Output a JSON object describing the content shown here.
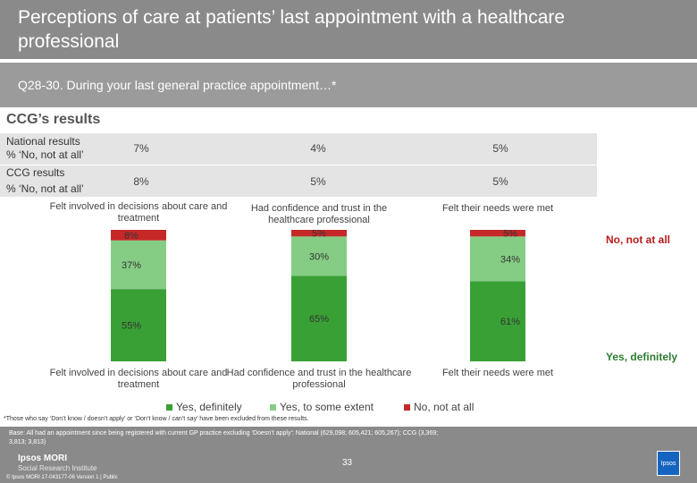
{
  "header": {
    "title": "Perceptions of care at patients’ last appointment with a healthcare professional",
    "question": "Q28-30.  During your last general practice appointment…*"
  },
  "ccg_title": "CCG’s results",
  "summary": {
    "national": {
      "label1": "National results",
      "label2": "% ‘No, not at all’",
      "values": [
        "7%",
        "4%",
        "5%"
      ]
    },
    "ccg": {
      "label1": "CCG results",
      "label2": "% ‘No, not at all’",
      "values": [
        "8%",
        "5%",
        "5%"
      ]
    }
  },
  "colors": {
    "yes_definitely": "#39a035",
    "yes_some": "#85cd85",
    "no_not_at_all": "#c62828"
  },
  "side_labels": {
    "no": "No, not at all",
    "yes": "Yes, definitely"
  },
  "legend": [
    "Yes, definitely",
    "Yes, to some extent",
    "No, not at all"
  ],
  "note": "*Those who say ‘Don’t know / doesn’t apply’ or ‘Don’t know / can’t say’ have been excluded from these results.",
  "footer": {
    "base": "Base: All had an appointment since being registered with current GP practice excluding ‘Doesn’t apply’: National (629,098; 605,421; 605,267); CCG (3,369; 3,813; 3,813)",
    "logo_line1": "Ipsos MORI",
    "logo_line2": "Social Research Institute",
    "copyright": "© Ipsos MORI      17-043177-06 Version 1 | Public",
    "page": "33",
    "logo_box": "Ipsos"
  },
  "chart_data": {
    "type": "bar",
    "stacked": true,
    "categories": [
      "Felt involved in decisions about care and treatment",
      "Had confidence and trust in the healthcare professional",
      "Felt their needs were met"
    ],
    "series": [
      {
        "name": "Yes, definitely",
        "values": [
          55,
          65,
          61
        ]
      },
      {
        "name": "Yes, to some extent",
        "values": [
          37,
          30,
          34
        ]
      },
      {
        "name": "No, not at all",
        "values": [
          8,
          5,
          5
        ]
      }
    ],
    "ylim": [
      0,
      100
    ],
    "legend_position": "bottom"
  }
}
